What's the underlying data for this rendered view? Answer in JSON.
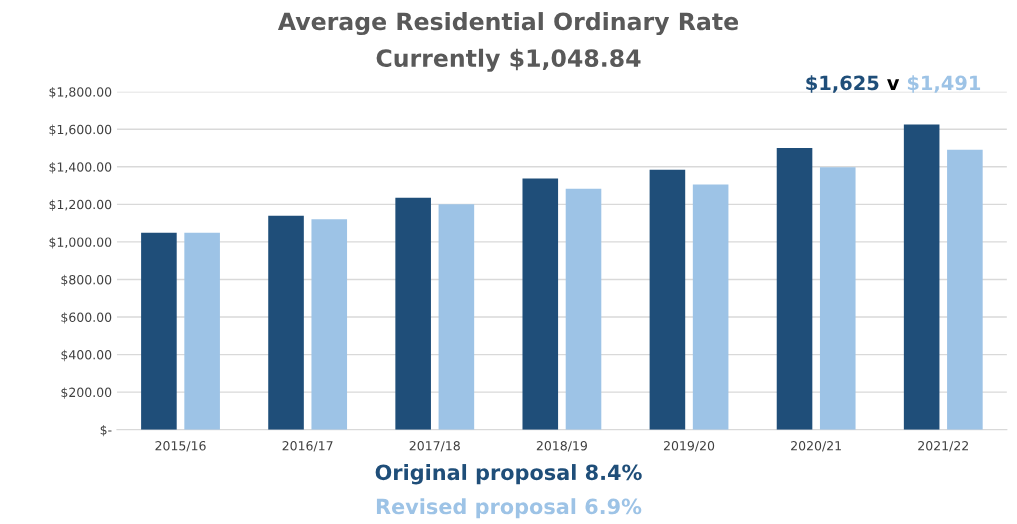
{
  "chart_data": {
    "type": "bar",
    "title": "Average Residential Ordinary Rate",
    "subtitle": "Currently $1,048.84",
    "categories": [
      "2015/16",
      "2016/17",
      "2017/18",
      "2018/19",
      "2019/20",
      "2020/21",
      "2021/22"
    ],
    "series": [
      {
        "name": "Original proposal 8.4%",
        "color": "#1f4e79",
        "values": [
          1049,
          1139,
          1235,
          1338,
          1384,
          1500,
          1625
        ]
      },
      {
        "name": "Revised proposal 6.9%",
        "color": "#9dc3e6",
        "values": [
          1049,
          1121,
          1201,
          1283,
          1306,
          1398,
          1491
        ]
      }
    ],
    "ylim": [
      0,
      1800
    ],
    "yticks": [
      {
        "value": 0,
        "label": "$-"
      },
      {
        "value": 200,
        "label": "$200.00"
      },
      {
        "value": 400,
        "label": "$400.00"
      },
      {
        "value": 600,
        "label": "$600.00"
      },
      {
        "value": 800,
        "label": "$800.00"
      },
      {
        "value": 1000,
        "label": "$1,000.00"
      },
      {
        "value": 1200,
        "label": "$1,200.00"
      },
      {
        "value": 1400,
        "label": "$1,400.00"
      },
      {
        "value": 1600,
        "label": "$1,600.00"
      },
      {
        "value": 1800,
        "label": "$1,800.00"
      }
    ],
    "annotations": [
      {
        "text": "$1,625 v $1,491",
        "x": "2021/22",
        "y": 1625
      }
    ],
    "grid": "y",
    "legend": "bottom"
  }
}
